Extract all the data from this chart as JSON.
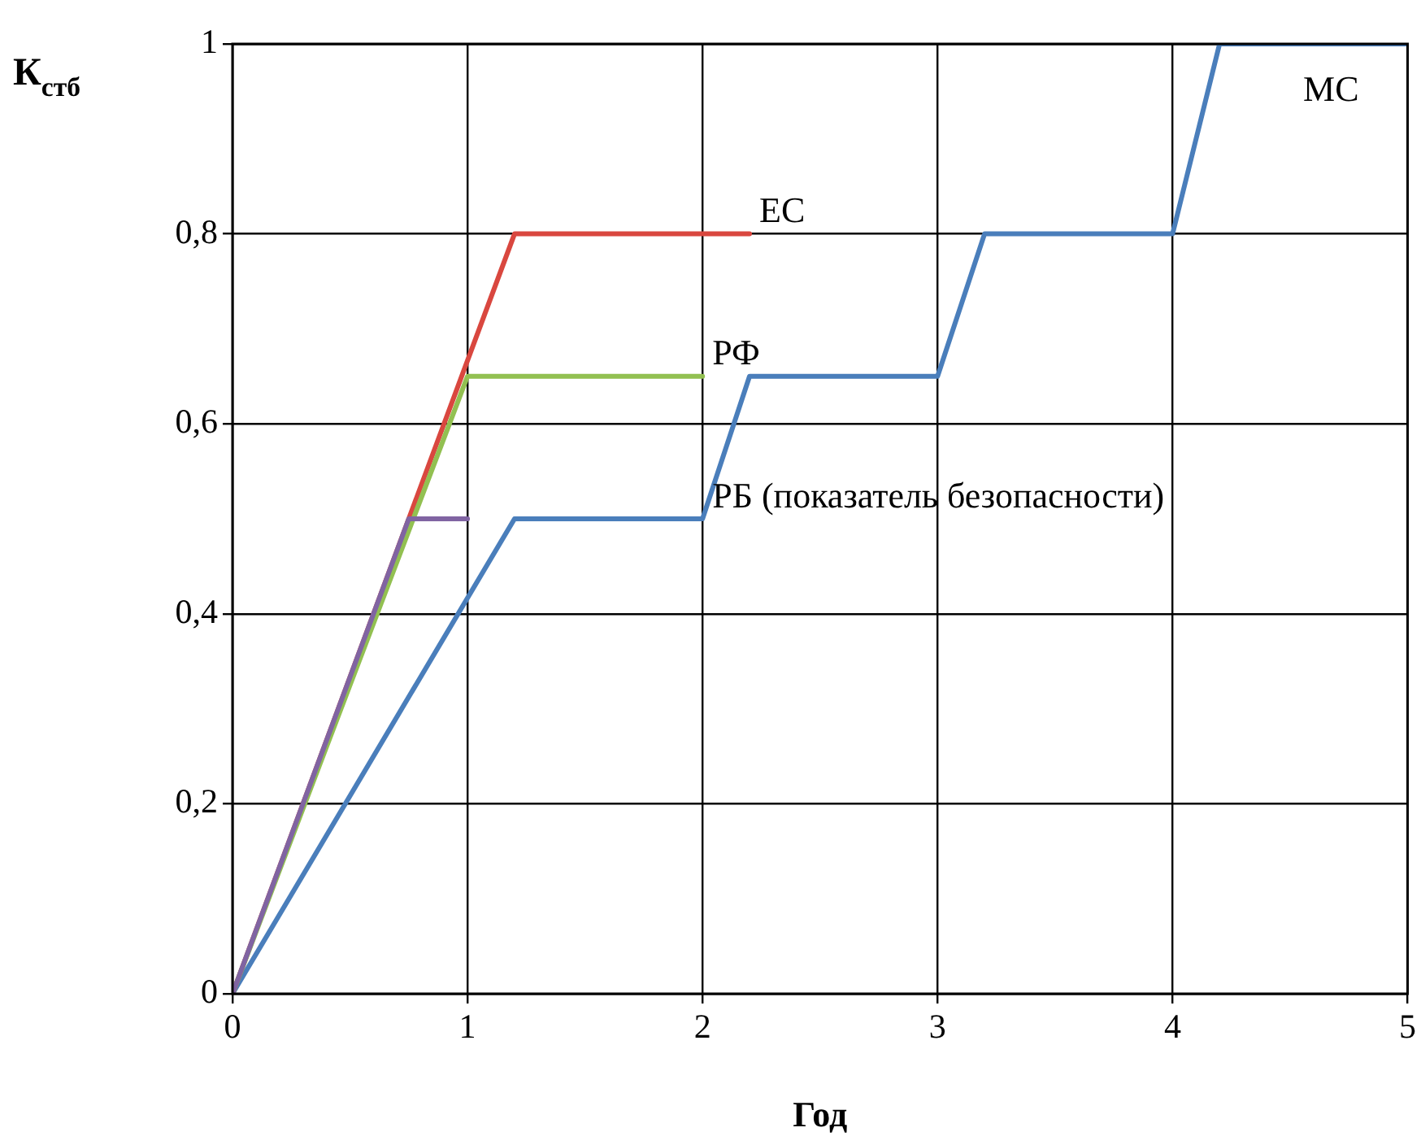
{
  "chart_data": {
    "type": "line",
    "xlabel": "Год",
    "ylabel": "К$_{стб}$",
    "xlim": [
      0,
      5
    ],
    "xticks": [
      0,
      1,
      2,
      3,
      4,
      5
    ],
    "ylim": [
      0,
      1
    ],
    "yticks": [
      0,
      {
        "value": 0.2,
        "label": "0,2"
      },
      {
        "value": 0.4,
        "label": "0,4"
      },
      {
        "value": 0.6,
        "label": "0,6"
      },
      {
        "value": 0.8,
        "label": "0,8"
      },
      1
    ],
    "grid": true,
    "legend": false,
    "marker": "none",
    "line_style": "solid",
    "series": [
      {
        "color": "#4a7ebb",
        "x": [
          0,
          1.2,
          2,
          2.2,
          3,
          3.2,
          4,
          4.2,
          5
        ],
        "values": [
          0,
          0.5,
          0.5,
          0.65,
          0.65,
          0.8,
          0.8,
          1,
          1
        ]
      },
      {
        "color": "#d9473f",
        "x": [
          0,
          1.2,
          2.2
        ],
        "values": [
          0,
          0.8,
          0.8
        ]
      },
      {
        "color": "#92c051",
        "x": [
          0,
          1,
          2
        ],
        "values": [
          0,
          0.65,
          0.65
        ]
      },
      {
        "color": "#8064a2",
        "x": [
          0,
          0.75,
          1
        ],
        "values": [
          0,
          0.5,
          0.5
        ]
      }
    ],
    "annotations": [
      {
        "text": "ЕС",
        "x": 2.2,
        "y": 0.8
      },
      {
        "text": "РФ",
        "x": 2,
        "y": 0.65
      },
      {
        "text": "РБ (показатель безопасности)",
        "x": 2,
        "y": 0.5
      },
      {
        "text": "МС",
        "x": 5,
        "y": 1
      }
    ]
  }
}
